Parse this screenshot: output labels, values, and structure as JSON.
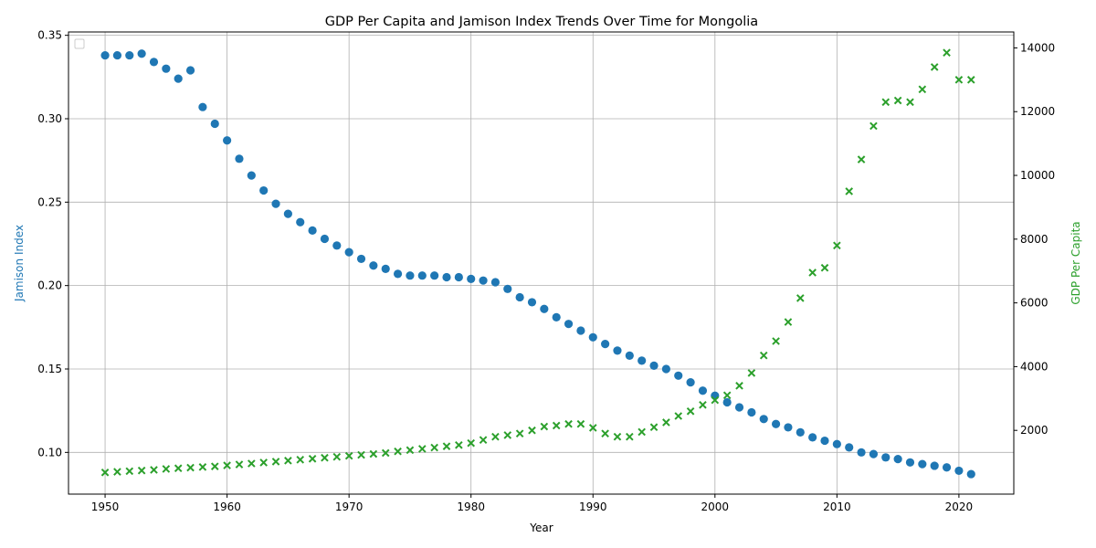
{
  "chart_data": {
    "type": "scatter",
    "title": "GDP Per Capita and Jamison Index Trends Over Time for Mongolia",
    "xlabel": "Year",
    "xlim": [
      1947,
      2024.5
    ],
    "x_ticks": [
      1950,
      1960,
      1970,
      1980,
      1990,
      2000,
      2010,
      2020
    ],
    "grid": true,
    "legend": "top-left (empty)",
    "axes": {
      "left": {
        "label": "Jamison Index",
        "color": "#1f77b4",
        "ylim": [
          0.075,
          0.352
        ],
        "ticks": [
          0.1,
          0.15,
          0.2,
          0.25,
          0.3,
          0.35
        ],
        "tick_labels": [
          "0.10",
          "0.15",
          "0.20",
          "0.25",
          "0.30",
          "0.35"
        ]
      },
      "right": {
        "label": "GDP Per Capita",
        "color": "#2ca02c",
        "ylim": [
          0,
          14500
        ],
        "ticks": [
          2000,
          4000,
          6000,
          8000,
          10000,
          12000,
          14000
        ],
        "tick_labels": [
          "2000",
          "4000",
          "6000",
          "8000",
          "10000",
          "12000",
          "14000"
        ]
      }
    },
    "x": [
      1950,
      1951,
      1952,
      1953,
      1954,
      1955,
      1956,
      1957,
      1958,
      1959,
      1960,
      1961,
      1962,
      1963,
      1964,
      1965,
      1966,
      1967,
      1968,
      1969,
      1970,
      1971,
      1972,
      1973,
      1974,
      1975,
      1976,
      1977,
      1978,
      1979,
      1980,
      1981,
      1982,
      1983,
      1984,
      1985,
      1986,
      1987,
      1988,
      1989,
      1990,
      1991,
      1992,
      1993,
      1994,
      1995,
      1996,
      1997,
      1998,
      1999,
      2000,
      2001,
      2002,
      2003,
      2004,
      2005,
      2006,
      2007,
      2008,
      2009,
      2010,
      2011,
      2012,
      2013,
      2014,
      2015,
      2016,
      2017,
      2018,
      2019,
      2020,
      2021
    ],
    "series": [
      {
        "name": "Jamison Index",
        "axis": "left",
        "marker": "circle",
        "color": "#1f77b4",
        "values": [
          0.338,
          0.338,
          0.338,
          0.339,
          0.334,
          0.33,
          0.324,
          0.329,
          0.307,
          0.297,
          0.287,
          0.276,
          0.266,
          0.257,
          0.249,
          0.243,
          0.238,
          0.233,
          0.228,
          0.224,
          0.22,
          0.216,
          0.212,
          0.21,
          0.207,
          0.206,
          0.206,
          0.206,
          0.205,
          0.205,
          0.204,
          0.203,
          0.202,
          0.198,
          0.193,
          0.19,
          0.186,
          0.181,
          0.177,
          0.173,
          0.169,
          0.165,
          0.161,
          0.158,
          0.155,
          0.152,
          0.15,
          0.146,
          0.142,
          0.137,
          0.134,
          0.13,
          0.127,
          0.124,
          0.12,
          0.117,
          0.115,
          0.112,
          0.109,
          0.107,
          0.105,
          0.103,
          0.1,
          0.099,
          0.097,
          0.096,
          0.094,
          0.093,
          0.092,
          0.091,
          0.089,
          0.087
        ]
      },
      {
        "name": "GDP Per Capita",
        "axis": "right",
        "marker": "x",
        "color": "#2ca02c",
        "values": [
          680,
          700,
          720,
          740,
          760,
          790,
          810,
          830,
          850,
          870,
          900,
          930,
          960,
          990,
          1020,
          1050,
          1080,
          1110,
          1140,
          1170,
          1200,
          1230,
          1260,
          1290,
          1340,
          1380,
          1420,
          1460,
          1500,
          1540,
          1600,
          1700,
          1800,
          1850,
          1900,
          2000,
          2120,
          2150,
          2200,
          2200,
          2080,
          1900,
          1800,
          1800,
          1950,
          2100,
          2250,
          2450,
          2600,
          2800,
          2950,
          3100,
          3400,
          3800,
          4350,
          4800,
          5400,
          6150,
          6950,
          7100,
          7800,
          9500,
          10500,
          11550,
          12300,
          12350,
          12300,
          12700,
          13400,
          13850,
          13000,
          13000
        ]
      }
    ]
  }
}
